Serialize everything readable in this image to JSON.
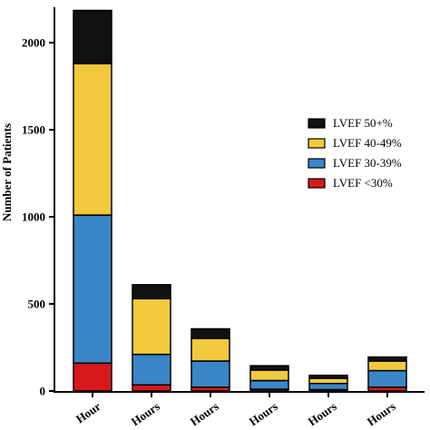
{
  "chart_data": {
    "type": "bar",
    "stacked": true,
    "title": "",
    "xlabel": "",
    "ylabel": "Number of Patients",
    "ylim": [
      0,
      2200
    ],
    "yticks": [
      0,
      500,
      1000,
      1500,
      2000
    ],
    "categories": [
      "Hour",
      "Hours",
      "Hours",
      "Hours",
      "Hours",
      "Hours"
    ],
    "series": [
      {
        "name": "LVEF <30%",
        "color": "#d7191c",
        "values": [
          160,
          35,
          22,
          10,
          8,
          22
        ]
      },
      {
        "name": "LVEF 30-39%",
        "color": "#3a86c8",
        "values": [
          850,
          175,
          150,
          50,
          35,
          95
        ]
      },
      {
        "name": "LVEF 40-49%",
        "color": "#f2c83c",
        "values": [
          870,
          320,
          130,
          60,
          30,
          55
        ]
      },
      {
        "name": "LVEF 50+%",
        "color": "#111111",
        "values": [
          305,
          80,
          55,
          25,
          17,
          23
        ]
      }
    ],
    "legend": {
      "position": "right",
      "order": [
        "LVEF 50+%",
        "LVEF 40-49%",
        "LVEF 30-39%",
        "LVEF <30%"
      ]
    },
    "grid": false
  }
}
